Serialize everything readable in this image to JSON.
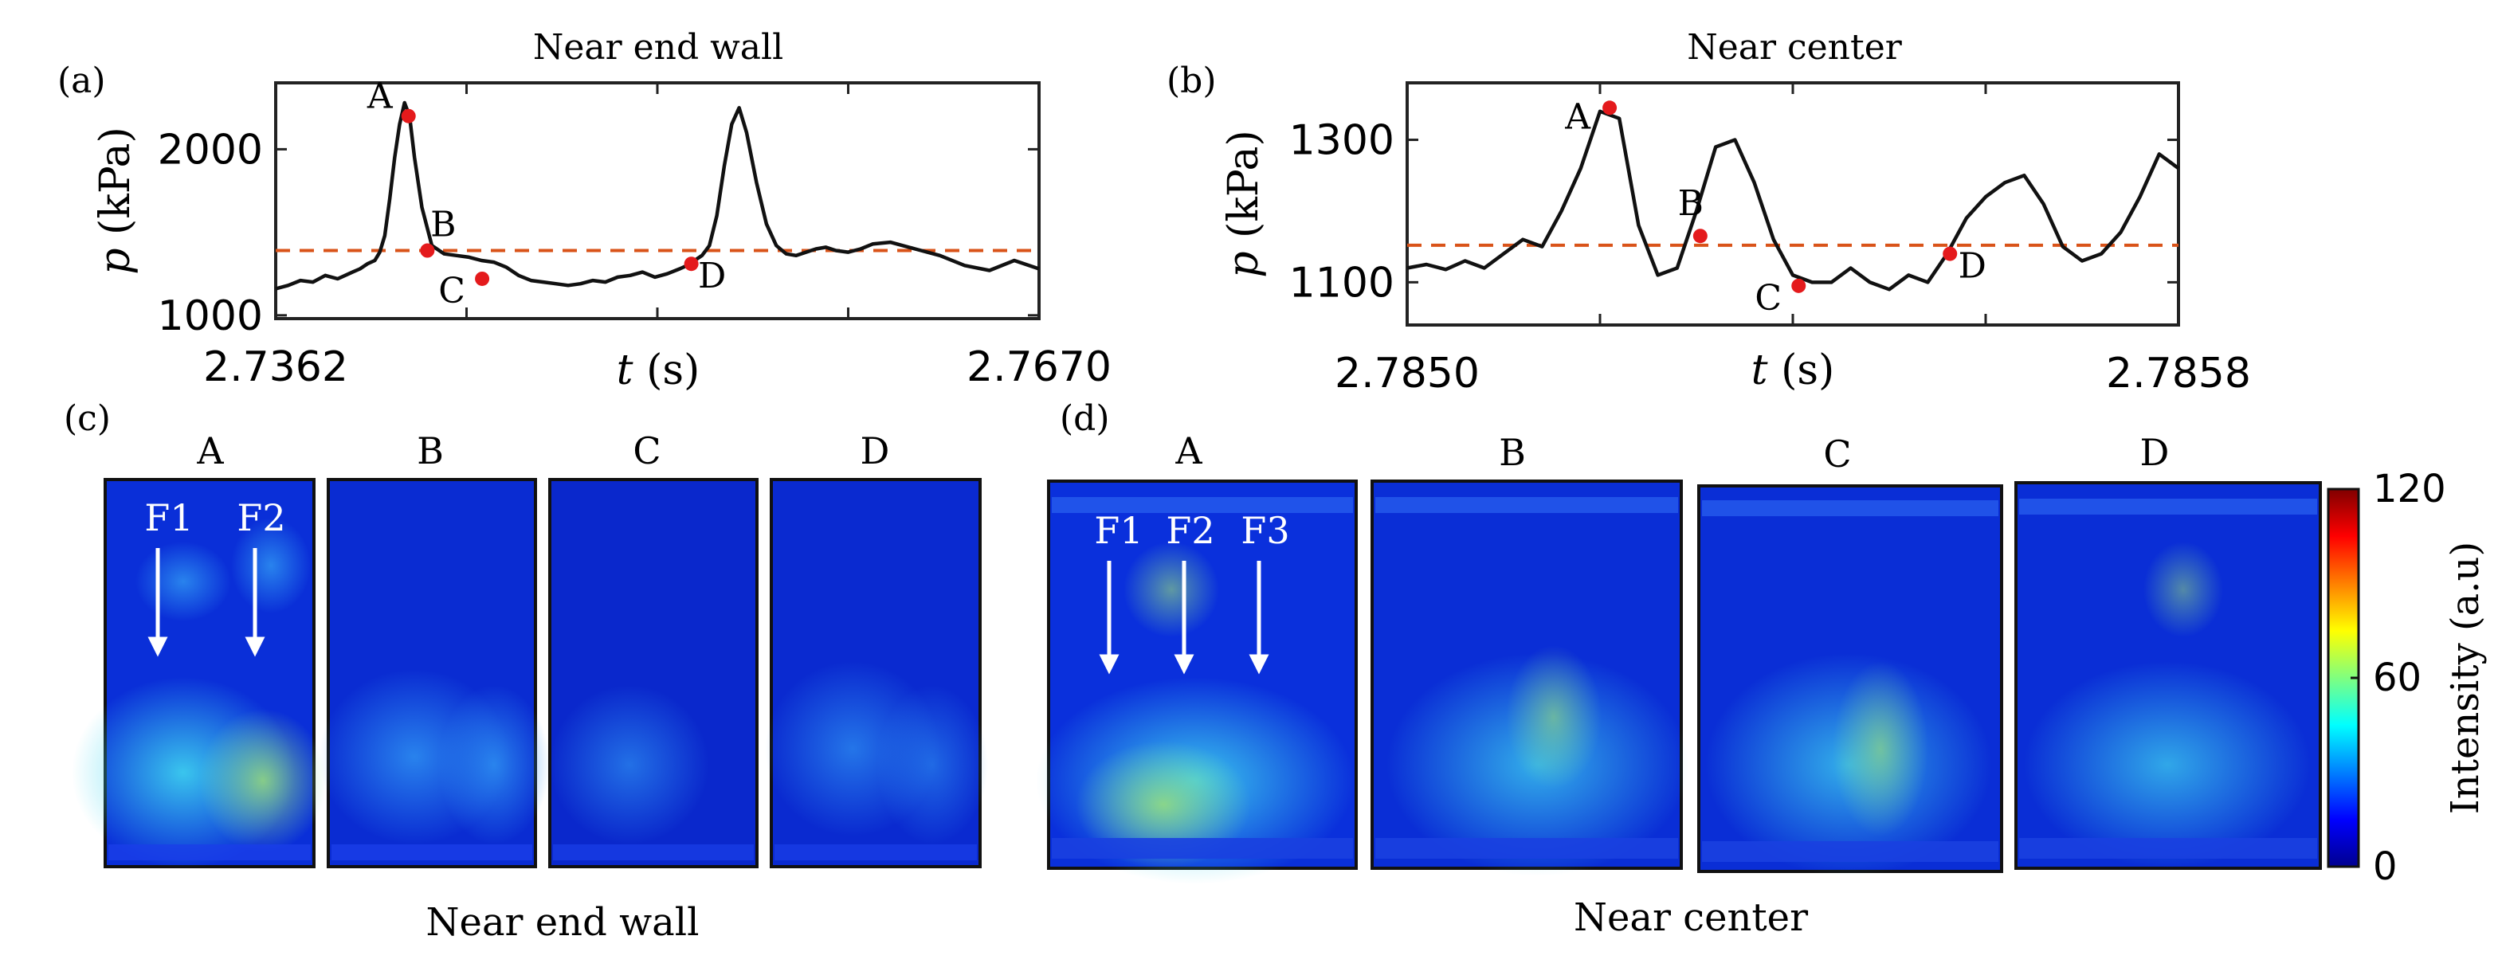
{
  "panel_labels": {
    "a": "(a)",
    "b": "(b)",
    "c": "(c)",
    "d": "(d)"
  },
  "chart_data": [
    {
      "type": "line",
      "title": "Near end wall",
      "xlabel_var": "t",
      "xlabel_unit": "(s)",
      "ylabel_var": "p",
      "ylabel_unit": "(kPa)",
      "xlim": [
        2.7362,
        2.767
      ],
      "ylim": [
        980,
        2400
      ],
      "xtick_labels": [
        "2.7362",
        "2.7670"
      ],
      "yticks": [
        1000,
        2000
      ],
      "ytick_labels": [
        "1000",
        "2000"
      ],
      "mean_line": 1390,
      "series": [
        {
          "name": "pressure",
          "x": [
            2.7362,
            2.7367,
            2.7372,
            2.7377,
            2.7382,
            2.7387,
            2.739,
            2.7393,
            2.7396,
            2.7399,
            2.7402,
            2.7404,
            2.7406,
            2.7408,
            2.741,
            2.7412,
            2.7414,
            2.7416,
            2.7418,
            2.7421,
            2.7425,
            2.743,
            2.7435,
            2.744,
            2.7445,
            2.745,
            2.7455,
            2.746,
            2.7465,
            2.747,
            2.7475,
            2.748,
            2.7485,
            2.749,
            2.7495,
            2.75,
            2.7505,
            2.751,
            2.7515,
            2.752,
            2.7525,
            2.7528,
            2.7531,
            2.7534,
            2.7537,
            2.754,
            2.7543,
            2.7546,
            2.7549,
            2.7552,
            2.7556,
            2.756,
            2.7564,
            2.7568,
            2.7572,
            2.7576,
            2.758,
            2.7584,
            2.7588,
            2.7593,
            2.7598,
            2.7603,
            2.761,
            2.762,
            2.763,
            2.764,
            2.765,
            2.766,
            2.767
          ],
          "y": [
            1160,
            1180,
            1210,
            1200,
            1240,
            1220,
            1240,
            1260,
            1280,
            1310,
            1330,
            1380,
            1480,
            1700,
            1950,
            2150,
            2280,
            2200,
            1950,
            1650,
            1420,
            1370,
            1360,
            1350,
            1330,
            1320,
            1290,
            1240,
            1210,
            1200,
            1190,
            1180,
            1190,
            1210,
            1200,
            1230,
            1240,
            1260,
            1230,
            1250,
            1280,
            1300,
            1330,
            1360,
            1420,
            1600,
            1900,
            2150,
            2250,
            2100,
            1800,
            1550,
            1420,
            1370,
            1360,
            1380,
            1400,
            1410,
            1390,
            1380,
            1400,
            1430,
            1440,
            1400,
            1360,
            1300,
            1270,
            1330,
            1280
          ]
        }
      ],
      "points": [
        {
          "label": "A",
          "x": 2.74156,
          "y": 2200
        },
        {
          "label": "B",
          "x": 2.74232,
          "y": 1390
        },
        {
          "label": "C",
          "x": 2.74453,
          "y": 1220
        },
        {
          "label": "D",
          "x": 2.75297,
          "y": 1310
        }
      ]
    },
    {
      "type": "line",
      "title": "Near center",
      "xlabel_var": "t",
      "xlabel_unit": "(s)",
      "ylabel_var": "p",
      "ylabel_unit": "(kPa)",
      "xlim": [
        2.785,
        2.7858
      ],
      "ylim": [
        1040,
        1380
      ],
      "xtick_labels": [
        "2.7850",
        "2.7858"
      ],
      "yticks": [
        1100,
        1300
      ],
      "ytick_labels": [
        "1100",
        "1300"
      ],
      "mean_line": 1152,
      "series": [
        {
          "name": "pressure",
          "x": [
            2.785,
            2.78502,
            2.78504,
            2.78506,
            2.78508,
            2.7851,
            2.78512,
            2.78514,
            2.78516,
            2.78518,
            2.7852,
            2.78522,
            2.78524,
            2.78526,
            2.78528,
            2.7853,
            2.78532,
            2.78534,
            2.78536,
            2.78538,
            2.7854,
            2.78542,
            2.78544,
            2.78546,
            2.78548,
            2.7855,
            2.78552,
            2.78554,
            2.78556,
            2.78558,
            2.7856,
            2.78562,
            2.78564,
            2.78566,
            2.78568,
            2.7857,
            2.78572,
            2.78574,
            2.78576,
            2.78578,
            2.7858
          ],
          "y": [
            1120,
            1125,
            1118,
            1130,
            1120,
            1140,
            1160,
            1150,
            1200,
            1260,
            1340,
            1330,
            1180,
            1110,
            1120,
            1200,
            1290,
            1300,
            1240,
            1160,
            1110,
            1100,
            1100,
            1120,
            1100,
            1090,
            1110,
            1100,
            1140,
            1190,
            1220,
            1240,
            1250,
            1210,
            1150,
            1130,
            1140,
            1170,
            1220,
            1280,
            1260
          ]
        }
      ],
      "points": [
        {
          "label": "A",
          "x": 2.78521,
          "y": 1345
        },
        {
          "label": "B",
          "x": 2.785304,
          "y": 1165
        },
        {
          "label": "C",
          "x": 2.785406,
          "y": 1095
        },
        {
          "label": "D",
          "x": 2.785563,
          "y": 1140
        }
      ]
    }
  ],
  "images_c": {
    "frames": [
      "A",
      "B",
      "C",
      "D"
    ],
    "arrows": [
      "F1",
      "F2"
    ],
    "caption": "Near end wall"
  },
  "images_d": {
    "frames": [
      "A",
      "B",
      "C",
      "D"
    ],
    "arrows": [
      "F1",
      "F2",
      "F3"
    ],
    "caption": "Near center"
  },
  "colorbar": {
    "label": "Intensity (a.u)",
    "ticks": [
      0,
      60,
      120
    ],
    "tick_labels": [
      "0",
      "60",
      "120"
    ],
    "colormap": "jet",
    "range": [
      0,
      120
    ]
  },
  "colors": {
    "line": "#111111",
    "mean_line": "#d95319",
    "point": "#e41a1c",
    "arrow": "#ffffff",
    "image_base": "#0a2fd8"
  }
}
